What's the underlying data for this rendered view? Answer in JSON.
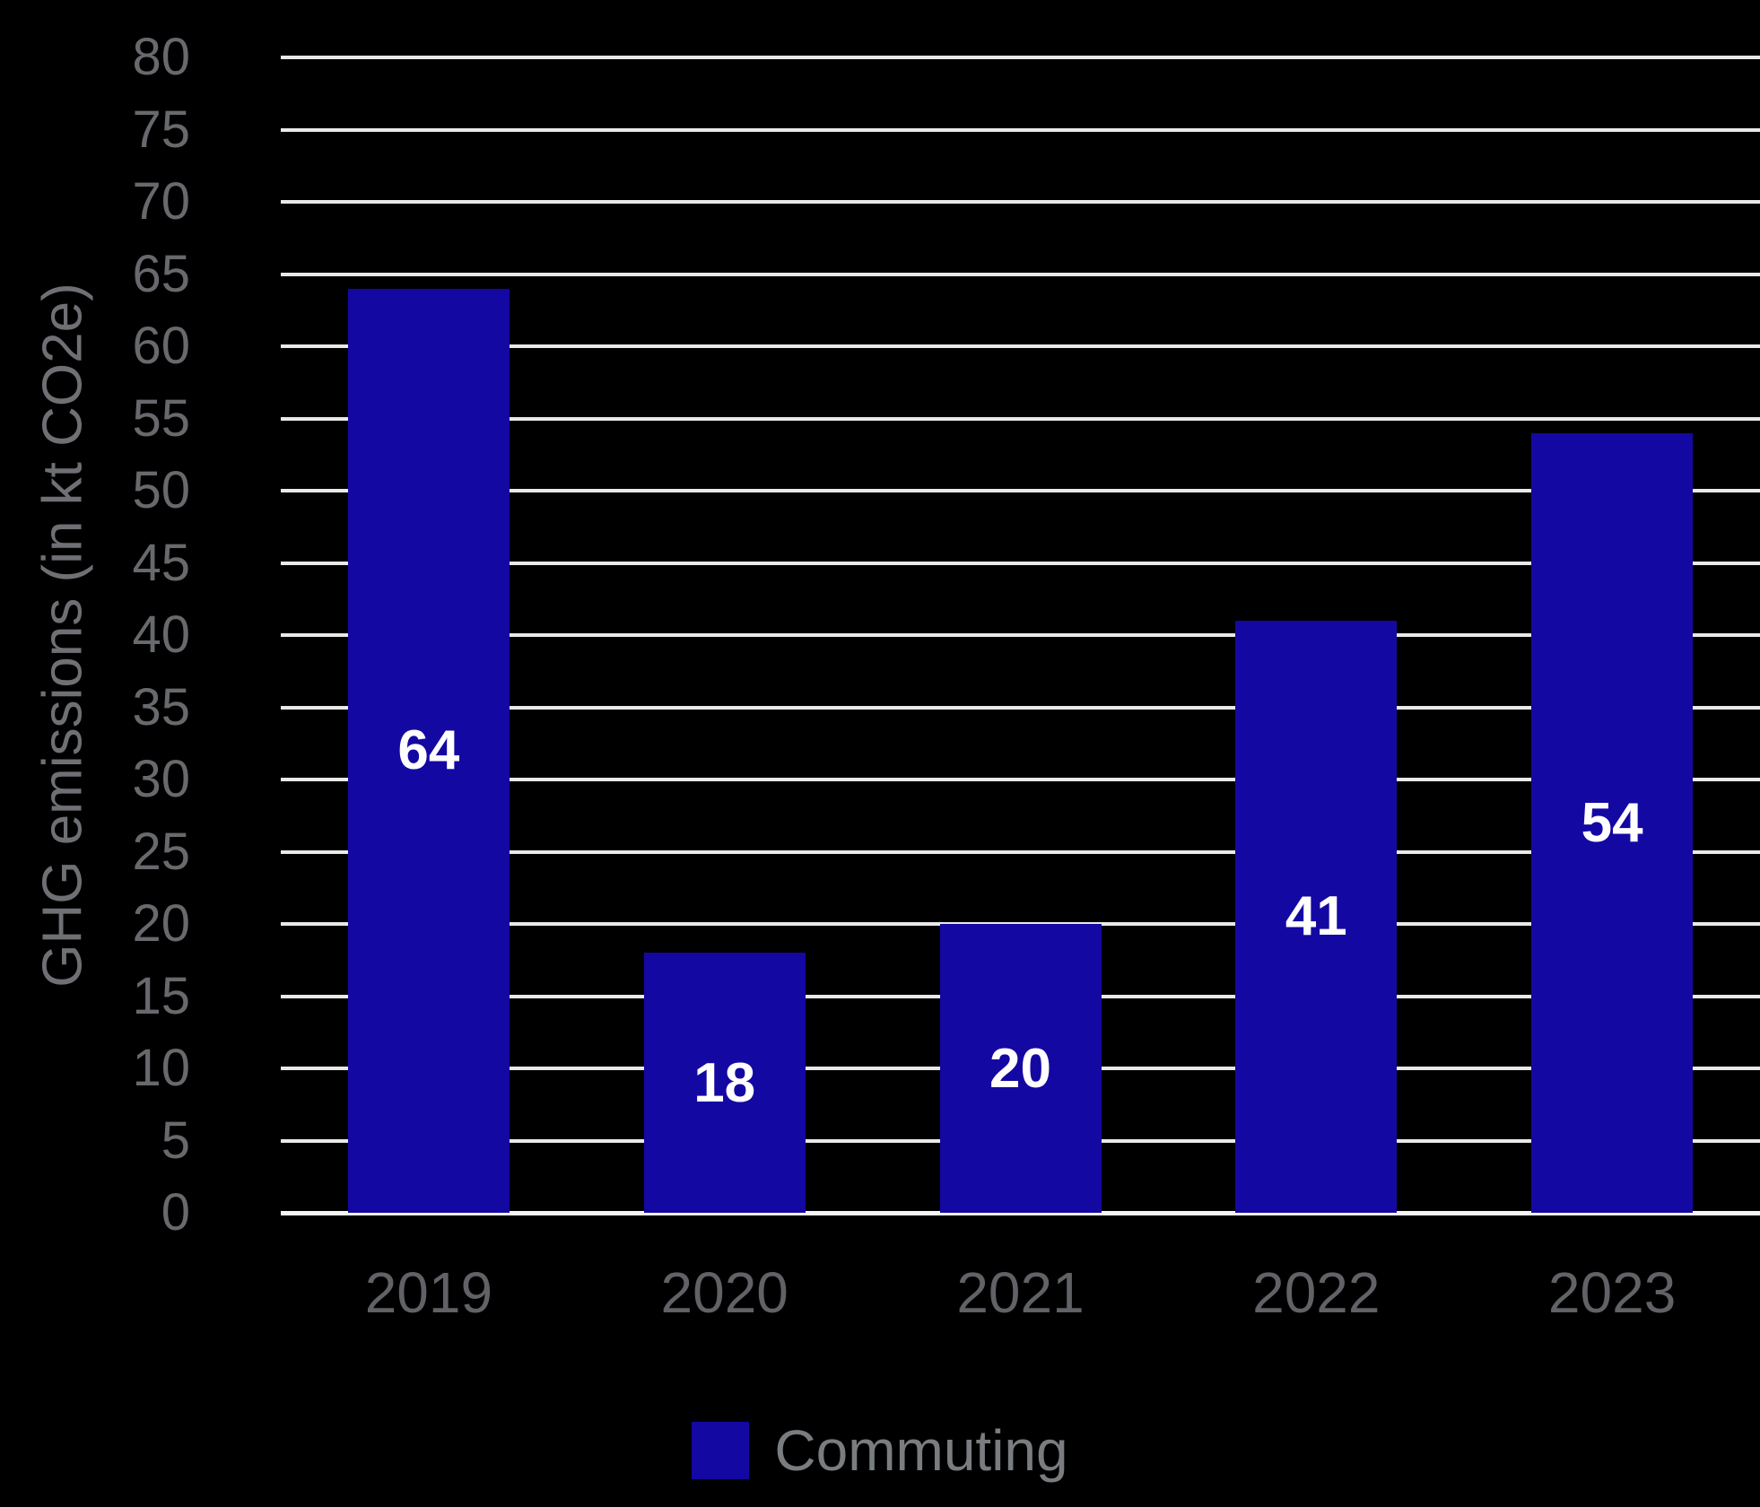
{
  "chart_data": {
    "type": "bar",
    "categories": [
      "2019",
      "2020",
      "2021",
      "2022",
      "2023"
    ],
    "series": [
      {
        "name": "Commuting",
        "values": [
          64,
          18,
          20,
          41,
          54
        ]
      }
    ],
    "bar_value_labels": [
      "64",
      "18",
      "20",
      "41",
      "54"
    ],
    "title": "",
    "xlabel": "",
    "ylabel": "GHG emissions (in kt CO2e)",
    "ylim": [
      0,
      80
    ],
    "ytick_step": 5,
    "yticks": [
      0,
      5,
      10,
      15,
      20,
      25,
      30,
      35,
      40,
      45,
      50,
      55,
      60,
      65,
      70,
      75,
      80
    ],
    "grid": "horizontal",
    "legend_position": "bottom-center"
  },
  "legend": {
    "items": [
      {
        "label": "Commuting",
        "swatch_color": "#1408A3"
      }
    ]
  },
  "colors": {
    "background": "#000000",
    "bar": "#1408A3",
    "bar_value_label": "#FFFFFF",
    "gridline": "#E9E9E9",
    "axis_baseline": "#F4F4F4",
    "tick_label": "#67696D",
    "x_label": "#606266",
    "axis_title": "#6E7074",
    "legend_label": "#7A7D80"
  }
}
